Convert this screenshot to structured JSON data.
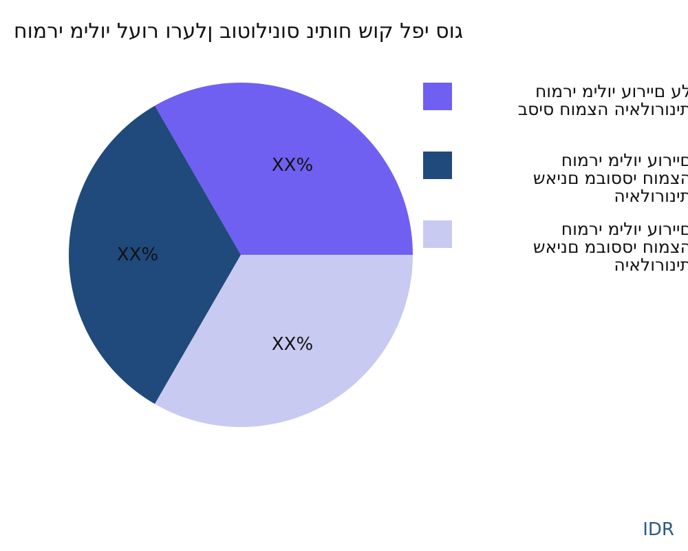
{
  "chart_data": {
    "type": "pie",
    "title": "גוס יפל קוש חותינ סונילוטוב ןלערו רועל יולימ ירמוח",
    "categories": [
      "לע םיירוע יולימ ירמוח\nתינורולאיה הצמוח סיסב",
      "םיירוע יולימ ירמוח\nהצמוח יססובמ םניאש\nתינורולאיה",
      "םיירוע יולימ ירמוח\nהצמוח יססובמ םניאש\nתינורולאיה"
    ],
    "values": [
      33.33,
      33.33,
      33.33
    ],
    "data_labels": [
      "XX%",
      "XX%",
      "XX%"
    ],
    "colors": [
      "#6f60f2",
      "#1f4a7b",
      "#c9caf1"
    ],
    "legend_position": "right"
  },
  "source": "IDR"
}
